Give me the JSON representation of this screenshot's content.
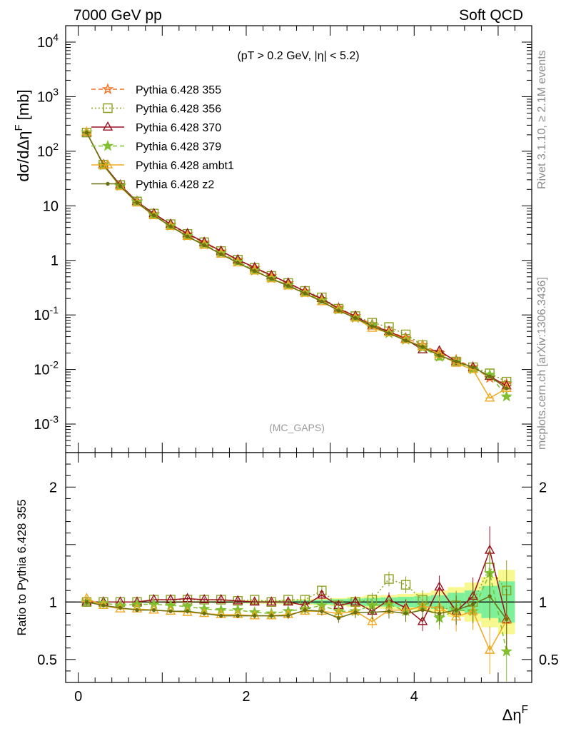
{
  "header": {
    "energy_label": "7000 GeV pp",
    "process_label": "Soft QCD",
    "cut_label": "(pT > 0.2 GeV, |η| < 5.2)",
    "analysis_tag": "(MC_GAPS)",
    "side_rivet": "Rivet 3.1.10, ≥ 2.1M events",
    "side_source": "mcplots.cern.ch [arXiv:1306.3436]"
  },
  "colors": {
    "355": "#f07020",
    "356": "#8ca020",
    "370": "#9a1020",
    "379": "#80c030",
    "ambt1": "#f0a820",
    "z2": "#6a7010",
    "band_inner": "#7ff09a",
    "band_outer": "#f8f890"
  },
  "chart_data": [
    {
      "type": "line",
      "panel": "main",
      "ylabel": "dσ/dΔη^F [mb]",
      "xlabel": "",
      "log_y": true,
      "xlim": [
        -0.15,
        5.4
      ],
      "ylim": [
        0.0003,
        20000
      ],
      "y_tick_labels": [
        "10^4",
        "10^3",
        "10^2",
        "10",
        "1",
        "10^-1",
        "10^-2",
        "10^-3"
      ],
      "legend_position": "top-left",
      "x": [
        0.1,
        0.3,
        0.5,
        0.7,
        0.9,
        1.1,
        1.3,
        1.5,
        1.7,
        1.9,
        2.1,
        2.3,
        2.5,
        2.7,
        2.9,
        3.1,
        3.3,
        3.5,
        3.7,
        3.9,
        4.1,
        4.3,
        4.5,
        4.7,
        4.9,
        5.1
      ],
      "series": [
        {
          "name": "Pythia 6.428 355",
          "key": "355",
          "marker": "star-open",
          "dash": "6,4",
          "values": [
            220,
            57,
            24,
            12,
            7,
            4.5,
            3,
            2.1,
            1.45,
            1.02,
            0.72,
            0.52,
            0.38,
            0.27,
            0.19,
            0.135,
            0.095,
            0.068,
            0.05,
            0.038,
            0.028,
            0.02,
            0.015,
            0.011,
            0.007,
            0.0055
          ]
        },
        {
          "name": "Pythia 6.428 356",
          "key": "356",
          "marker": "square-open",
          "dash": "2,3",
          "values": [
            220,
            57,
            24,
            12,
            7.2,
            4.6,
            3.05,
            2.15,
            1.48,
            1.03,
            0.73,
            0.52,
            0.385,
            0.275,
            0.21,
            0.13,
            0.095,
            0.072,
            0.06,
            0.044,
            0.028,
            0.018,
            0.014,
            0.011,
            0.0085,
            0.006
          ]
        },
        {
          "name": "Pythia 6.428 370",
          "key": "370",
          "marker": "triangle-open",
          "dash": "",
          "values": [
            220,
            57,
            24,
            12,
            7.2,
            4.6,
            3.1,
            2.15,
            1.48,
            1.03,
            0.74,
            0.53,
            0.385,
            0.27,
            0.2,
            0.13,
            0.095,
            0.063,
            0.05,
            0.036,
            0.023,
            0.022,
            0.014,
            0.011,
            0.0075,
            0.005
          ]
        },
        {
          "name": "Pythia 6.428 379",
          "key": "379",
          "marker": "star-filled",
          "dash": "6,4",
          "values": [
            220,
            56,
            23,
            11.8,
            6.8,
            4.3,
            2.8,
            1.95,
            1.35,
            0.95,
            0.65,
            0.47,
            0.35,
            0.255,
            0.185,
            0.125,
            0.088,
            0.064,
            0.046,
            0.035,
            0.025,
            0.017,
            0.014,
            0.01,
            0.008,
            0.0032
          ]
        },
        {
          "name": "Pythia 6.428 ambt1",
          "key": "ambt1",
          "marker": "triangle-open",
          "dash": "",
          "values": [
            225,
            55,
            22.5,
            11.3,
            6.6,
            4.2,
            2.75,
            1.9,
            1.3,
            0.9,
            0.64,
            0.46,
            0.34,
            0.25,
            0.175,
            0.125,
            0.088,
            0.057,
            0.047,
            0.035,
            0.026,
            0.019,
            0.013,
            0.01,
            0.003,
            0.0045
          ]
        },
        {
          "name": "Pythia 6.428 z2",
          "key": "z2",
          "marker": "dot",
          "dash": "",
          "values": [
            220,
            56,
            23,
            11.5,
            6.7,
            4.2,
            2.75,
            1.9,
            1.3,
            0.9,
            0.64,
            0.46,
            0.34,
            0.25,
            0.175,
            0.12,
            0.088,
            0.062,
            0.046,
            0.034,
            0.026,
            0.018,
            0.014,
            0.011,
            0.0075,
            0.0045
          ]
        }
      ]
    },
    {
      "type": "line",
      "panel": "ratio",
      "ylabel": "Ratio to Pythia 6.428 355",
      "xlabel": "Δη^F",
      "xlim": [
        -0.15,
        5.4
      ],
      "ylim": [
        0.3,
        2.3
      ],
      "x_tick_labels": [
        "0",
        "2",
        "4"
      ],
      "y_tick_labels": [
        "2",
        "1",
        "0.5"
      ],
      "x": [
        0.1,
        0.3,
        0.5,
        0.7,
        0.9,
        1.1,
        1.3,
        1.5,
        1.7,
        1.9,
        2.1,
        2.3,
        2.5,
        2.7,
        2.9,
        3.1,
        3.3,
        3.5,
        3.7,
        3.9,
        4.1,
        4.3,
        4.5,
        4.7,
        4.9,
        5.1
      ],
      "band_inner_halfwidth": [
        0.002,
        0.002,
        0.002,
        0.003,
        0.003,
        0.004,
        0.004,
        0.005,
        0.006,
        0.007,
        0.008,
        0.01,
        0.012,
        0.015,
        0.02,
        0.025,
        0.03,
        0.035,
        0.04,
        0.045,
        0.05,
        0.06,
        0.08,
        0.1,
        0.14,
        0.18
      ],
      "band_outer_halfwidth": [
        0.004,
        0.004,
        0.005,
        0.005,
        0.006,
        0.007,
        0.008,
        0.009,
        0.01,
        0.012,
        0.014,
        0.017,
        0.02,
        0.025,
        0.03,
        0.035,
        0.045,
        0.055,
        0.06,
        0.07,
        0.08,
        0.1,
        0.13,
        0.17,
        0.22,
        0.28
      ],
      "series": [
        {
          "name": "Pythia 6.428 356",
          "key": "356",
          "values": [
            1.0,
            1.0,
            1.0,
            1.0,
            1.02,
            1.02,
            1.02,
            1.02,
            1.02,
            1.01,
            1.02,
            1.0,
            1.02,
            1.02,
            1.1,
            0.97,
            1.0,
            1.02,
            1.2,
            1.15,
            1.02,
            0.92,
            0.97,
            1.0,
            1.3,
            1.1
          ]
        },
        {
          "name": "Pythia 6.428 370",
          "key": "370",
          "values": [
            1.0,
            1.0,
            1.0,
            1.0,
            1.02,
            1.02,
            1.03,
            1.02,
            1.02,
            1.01,
            1.0,
            1.0,
            1.0,
            0.97,
            1.06,
            0.97,
            1.0,
            0.92,
            1.02,
            0.95,
            0.83,
            1.13,
            0.92,
            1.05,
            1.45,
            0.85
          ]
        },
        {
          "name": "Pythia 6.428 379",
          "key": "379",
          "values": [
            1.0,
            0.99,
            0.97,
            0.98,
            0.98,
            0.97,
            0.96,
            0.94,
            0.93,
            0.93,
            0.91,
            0.9,
            0.92,
            0.94,
            0.97,
            0.92,
            0.92,
            0.97,
            0.98,
            0.92,
            0.97,
            0.86,
            0.93,
            0.92,
            1.25,
            0.57
          ]
        },
        {
          "name": "Pythia 6.428 ambt1",
          "key": "ambt1",
          "values": [
            1.03,
            0.97,
            0.94,
            0.94,
            0.93,
            0.92,
            0.91,
            0.9,
            0.89,
            0.89,
            0.88,
            0.88,
            0.89,
            0.92,
            0.92,
            0.9,
            0.92,
            0.83,
            0.93,
            0.93,
            0.96,
            0.95,
            0.87,
            0.92,
            0.58,
            0.84
          ]
        },
        {
          "name": "Pythia 6.428 z2",
          "key": "z2",
          "values": [
            1.0,
            0.97,
            0.95,
            0.93,
            0.93,
            0.92,
            0.92,
            0.9,
            0.88,
            0.88,
            0.88,
            0.88,
            0.88,
            0.93,
            0.92,
            0.86,
            0.91,
            0.91,
            0.92,
            0.9,
            0.93,
            0.9,
            0.93,
            0.98,
            1.05,
            0.85
          ]
        }
      ]
    }
  ]
}
